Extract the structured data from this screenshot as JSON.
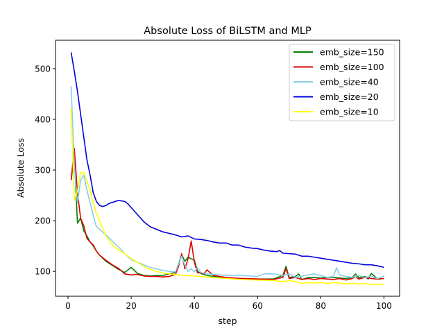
{
  "chart_data": {
    "type": "line",
    "title": "Absolute Loss of BiLSTM and MLP",
    "xlabel": "step",
    "ylabel": "Absolute Loss",
    "xlim": [
      -3.95,
      104.95
    ],
    "ylim": [
      51,
      556
    ],
    "xticks": [
      0,
      20,
      40,
      60,
      80,
      100
    ],
    "yticks": [
      100,
      200,
      300,
      400,
      500
    ],
    "grid": false,
    "legend": "top-right",
    "series": [
      {
        "name": "emb_size=150",
        "color": "#008000",
        "x": [
          1,
          2,
          3,
          4,
          5,
          6,
          7,
          8,
          9,
          10,
          12,
          14,
          16,
          18,
          20,
          22,
          24,
          26,
          28,
          30,
          32,
          34,
          35,
          36,
          37,
          38,
          39,
          40,
          41,
          42,
          44,
          46,
          48,
          50,
          55,
          60,
          65,
          68,
          69,
          70,
          72,
          73,
          74,
          76,
          78,
          80,
          82,
          84,
          86,
          88,
          90,
          91,
          92,
          94,
          95,
          96,
          98,
          100
        ],
        "y": [
          280,
          330,
          195,
          205,
          180,
          170,
          158,
          150,
          140,
          132,
          120,
          112,
          104,
          98,
          108,
          96,
          92,
          91,
          92,
          92,
          95,
          98,
          115,
          133,
          120,
          128,
          125,
          122,
          100,
          96,
          92,
          90,
          88,
          87,
          86,
          85,
          85,
          92,
          110,
          88,
          90,
          95,
          84,
          88,
          88,
          87,
          88,
          88,
          87,
          86,
          88,
          95,
          88,
          90,
          85,
          96,
          85,
          86
        ]
      },
      {
        "name": "emb_size=100",
        "color": "#e00000",
        "x": [
          1,
          2,
          3,
          4,
          5,
          6,
          7,
          8,
          9,
          10,
          12,
          14,
          16,
          18,
          20,
          22,
          24,
          26,
          28,
          30,
          32,
          34,
          35,
          36,
          37,
          38,
          39,
          40,
          41,
          42,
          43,
          44,
          46,
          48,
          50,
          55,
          60,
          65,
          68,
          69,
          70,
          72,
          74,
          76,
          78,
          80,
          82,
          84,
          86,
          88,
          90,
          91,
          92,
          94,
          96,
          98,
          100
        ],
        "y": [
          280,
          343,
          255,
          205,
          190,
          165,
          158,
          152,
          140,
          132,
          122,
          113,
          106,
          95,
          93,
          94,
          91,
          90,
          90,
          89,
          90,
          94,
          110,
          135,
          105,
          125,
          160,
          118,
          97,
          98,
          95,
          103,
          92,
          90,
          88,
          86,
          85,
          84,
          88,
          106,
          86,
          88,
          84,
          86,
          84,
          86,
          85,
          84,
          86,
          83,
          86,
          90,
          85,
          88,
          86,
          85,
          86
        ]
      },
      {
        "name": "emb_size=40",
        "color": "#87ceeb",
        "x": [
          1,
          2,
          3,
          4,
          5,
          6,
          7,
          8,
          9,
          10,
          12,
          14,
          16,
          18,
          20,
          22,
          24,
          26,
          28,
          30,
          32,
          34,
          36,
          37,
          38,
          39,
          40,
          41,
          42,
          44,
          46,
          48,
          50,
          55,
          60,
          62,
          65,
          68,
          70,
          72,
          75,
          78,
          80,
          82,
          84,
          85,
          86,
          88,
          90,
          92,
          94,
          96,
          98,
          100
        ],
        "y": [
          465,
          310,
          235,
          280,
          290,
          260,
          235,
          210,
          188,
          183,
          172,
          160,
          148,
          135,
          123,
          118,
          113,
          108,
          105,
          102,
          100,
          99,
          130,
          112,
          100,
          105,
          99,
          108,
          98,
          95,
          94,
          93,
          92,
          92,
          90,
          95,
          95,
          92,
          95,
          88,
          92,
          95,
          92,
          88,
          90,
          107,
          93,
          90,
          88,
          92,
          88,
          90,
          86,
          91
        ]
      },
      {
        "name": "emb_size=20",
        "color": "#0000dd",
        "x": [
          1,
          2,
          3,
          4,
          5,
          6,
          7,
          8,
          9,
          10,
          11,
          12,
          13,
          14,
          16,
          18,
          19,
          20,
          22,
          24,
          26,
          28,
          30,
          32,
          34,
          36,
          38,
          40,
          42,
          44,
          46,
          48,
          50,
          52,
          54,
          56,
          58,
          60,
          62,
          64,
          66,
          67,
          68,
          70,
          72,
          74,
          76,
          78,
          80,
          82,
          84,
          86,
          88,
          90,
          92,
          94,
          96,
          98,
          100
        ],
        "y": [
          532,
          495,
          455,
          410,
          365,
          320,
          290,
          255,
          238,
          230,
          228,
          230,
          234,
          236,
          240,
          238,
          233,
          226,
          212,
          198,
          188,
          183,
          178,
          175,
          172,
          168,
          170,
          164,
          163,
          161,
          158,
          156,
          156,
          152,
          152,
          148,
          146,
          145,
          142,
          140,
          139,
          141,
          136,
          135,
          134,
          130,
          130,
          128,
          126,
          124,
          122,
          120,
          118,
          116,
          115,
          113,
          113,
          111,
          108
        ]
      },
      {
        "name": "emb_size=10",
        "color": "#ffff00",
        "x": [
          1,
          2,
          3,
          4,
          5,
          6,
          7,
          8,
          9,
          10,
          12,
          14,
          16,
          18,
          20,
          22,
          24,
          26,
          28,
          30,
          32,
          34,
          36,
          38,
          40,
          42,
          44,
          46,
          48,
          50,
          55,
          60,
          65,
          68,
          70,
          72,
          74,
          76,
          78,
          80,
          82,
          84,
          86,
          88,
          90,
          92,
          94,
          96,
          98,
          100
        ],
        "y": [
          422,
          240,
          258,
          295,
          295,
          278,
          260,
          235,
          215,
          200,
          170,
          153,
          142,
          135,
          125,
          118,
          110,
          104,
          100,
          97,
          95,
          94,
          92,
          92,
          91,
          90,
          89,
          88,
          87,
          86,
          84,
          83,
          82,
          80,
          82,
          80,
          76,
          78,
          77,
          78,
          76,
          78,
          77,
          75,
          77,
          75,
          76,
          74,
          74,
          75
        ]
      }
    ]
  }
}
